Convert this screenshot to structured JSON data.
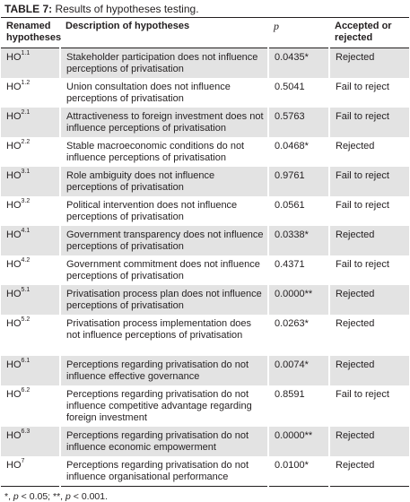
{
  "caption": {
    "label": "TABLE 7:",
    "text": " Results of hypotheses testing."
  },
  "columns": {
    "renamed": "Renamed hypotheses",
    "description": "Description of hypotheses",
    "p": "p",
    "status": "Accepted or rejected"
  },
  "rows": [
    {
      "code": "HO",
      "sup": "1.1",
      "description": "Stakeholder participation does not influence perceptions of privatisation",
      "p": "0.0435*",
      "status": "Rejected"
    },
    {
      "code": "HO",
      "sup": "1.2",
      "description": "Union consultation does not influence perceptions of privatisation",
      "p": "0.5041",
      "status": "Fail to reject"
    },
    {
      "code": "HO",
      "sup": "2.1",
      "description": "Attractiveness to foreign investment does not influence perceptions of privatisation",
      "p": "0.5763",
      "status": "Fail to reject"
    },
    {
      "code": "HO",
      "sup": "2.2",
      "description": "Stable macroeconomic conditions do not influence perceptions of privatisation",
      "p": "0.0468*",
      "status": "Rejected"
    },
    {
      "code": "HO",
      "sup": "3.1",
      "description": "Role ambiguity does not influence perceptions of privatisation",
      "p": "0.9761",
      "status": "Fail to reject"
    },
    {
      "code": "HO",
      "sup": "3.2",
      "description": "Political intervention does not influence perceptions of privatisation",
      "p": "0.0561",
      "status": "Fail to reject"
    },
    {
      "code": "HO",
      "sup": "4.1",
      "description": "Government transparency does not influence perceptions of privatisation",
      "p": "0.0338*",
      "status": "Rejected"
    },
    {
      "code": "HO",
      "sup": "4.2",
      "description": "Government commitment does not influence perceptions of privatisation",
      "p": "0.4371",
      "status": "Fail to reject"
    },
    {
      "code": "HO",
      "sup": "5.1",
      "description": "Privatisation process plan does not influence perceptions of privatisation",
      "p": "0.0000**",
      "status": "Rejected"
    },
    {
      "code": "HO",
      "sup": "5.2",
      "description": "Privatisation process implementation does not influence perceptions of privatisation",
      "p": "0.0263*",
      "status": "Rejected"
    },
    {
      "code": "HO",
      "sup": "6.1",
      "description": "Perceptions regarding privatisation do not influence effective governance",
      "p": "0.0074*",
      "status": "Rejected"
    },
    {
      "code": "HO",
      "sup": "6.2",
      "description": "Perceptions regarding privatisation do not influence competitive advantage regarding foreign investment",
      "p": "0.8591",
      "status": "Fail to reject"
    },
    {
      "code": "HO",
      "sup": "6.3",
      "description": "Perceptions regarding privatisation do not influence economic empowerment",
      "p": "0.0000**",
      "status": "Rejected"
    },
    {
      "code": "HO",
      "sup": "7",
      "description": "Perceptions regarding privatisation do not influence organisational performance",
      "p": "0.0100*",
      "status": "Rejected"
    }
  ],
  "footnote": {
    "star1": "*, ",
    "cond1": "p",
    "val1": " < 0.05; **, ",
    "cond2": "p",
    "val2": " < 0.001."
  }
}
